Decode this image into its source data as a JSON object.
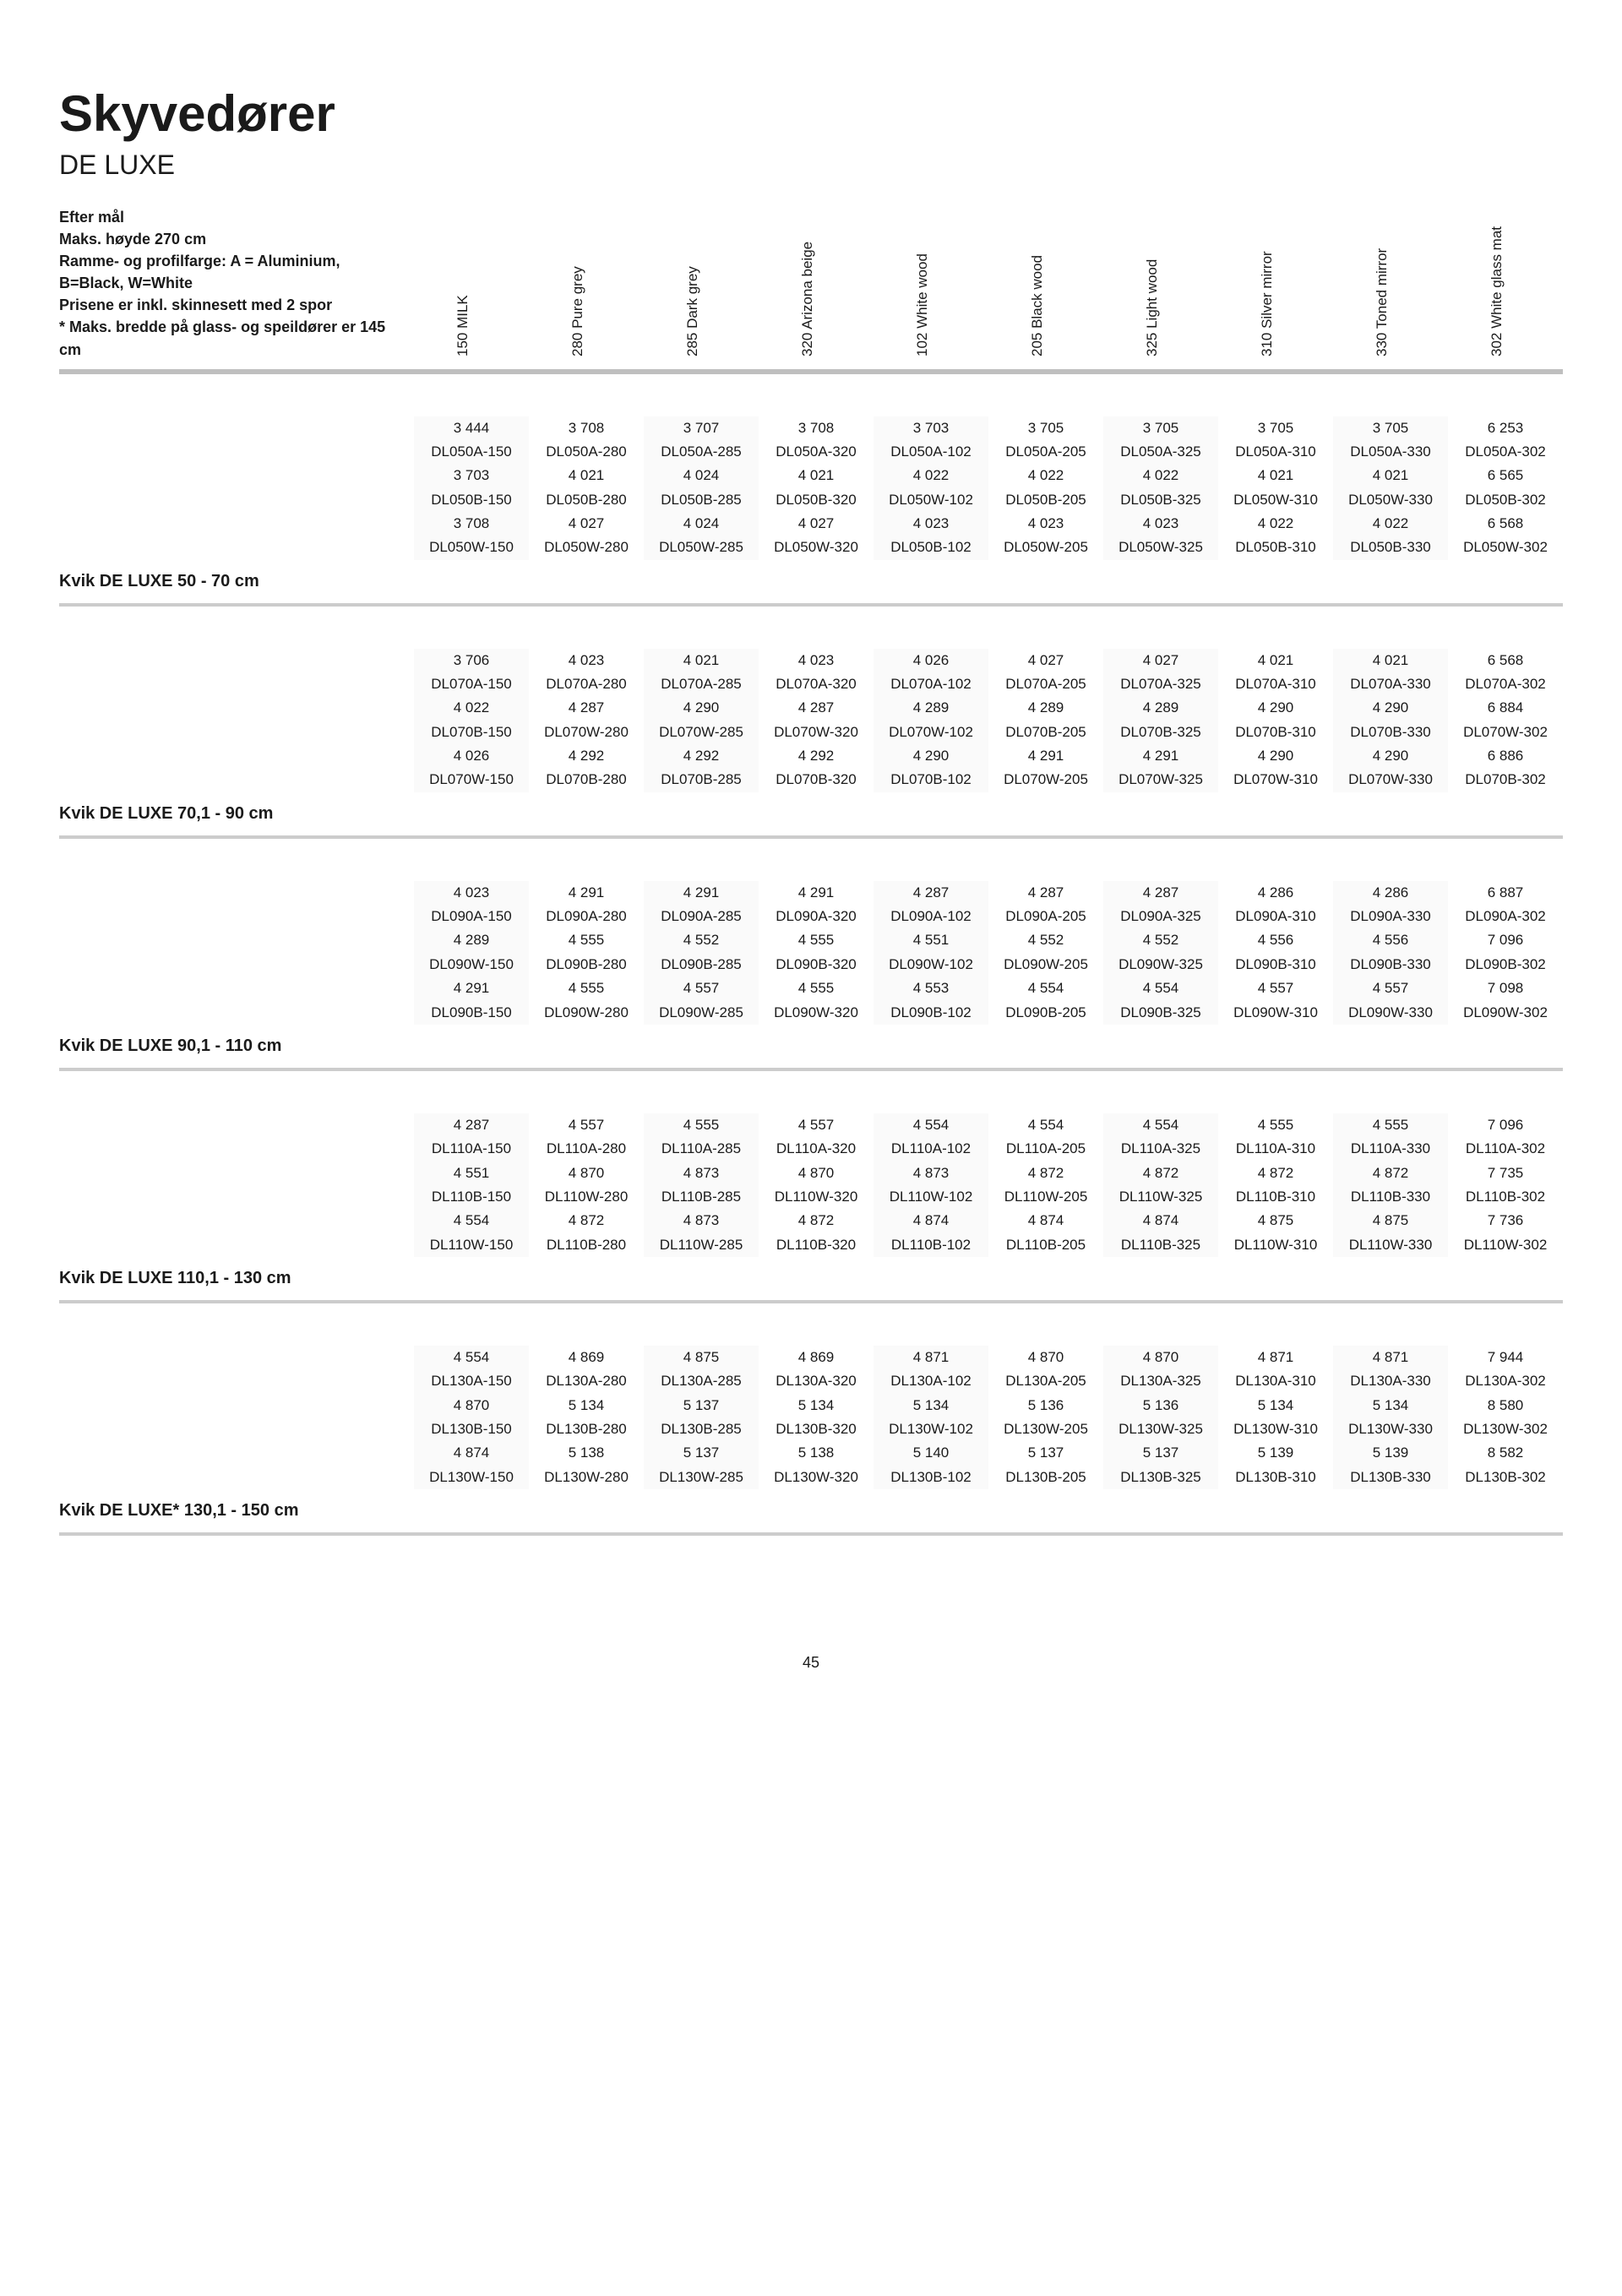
{
  "title": "Skyvedører",
  "subtitle": "DE LUXE",
  "description": "Efter mål\nMaks. høyde 270 cm\nRamme- og profilfarge: A = Aluminium, B=Black, W=White\nPrisene er inkl. skinnesett med 2 spor\n* Maks. bredde på glass- og speildører er 145 cm",
  "columns": [
    "150 MILK",
    "280 Pure grey",
    "285 Dark grey",
    "320 Arizona beige",
    "102 White wood",
    "205 Black wood",
    "325 Light wood",
    "310 Silver mirror",
    "330 Toned mirror",
    "302 White glass mat"
  ],
  "page_number": "45",
  "sections": [
    {
      "label": "Kvik DE LUXE 50 - 70 cm",
      "rows": [
        [
          "3 444",
          "3 708",
          "3 707",
          "3 708",
          "3 703",
          "3 705",
          "3 705",
          "3 705",
          "3 705",
          "6 253"
        ],
        [
          "DL050A-150",
          "DL050A-280",
          "DL050A-285",
          "DL050A-320",
          "DL050A-102",
          "DL050A-205",
          "DL050A-325",
          "DL050A-310",
          "DL050A-330",
          "DL050A-302"
        ],
        [
          "3 703",
          "4 021",
          "4 024",
          "4 021",
          "4 022",
          "4 022",
          "4 022",
          "4 021",
          "4 021",
          "6 565"
        ],
        [
          "DL050B-150",
          "DL050B-280",
          "DL050B-285",
          "DL050B-320",
          "DL050W-102",
          "DL050B-205",
          "DL050B-325",
          "DL050W-310",
          "DL050W-330",
          "DL050B-302"
        ],
        [
          "3 708",
          "4 027",
          "4 024",
          "4 027",
          "4 023",
          "4 023",
          "4 023",
          "4 022",
          "4 022",
          "6 568"
        ],
        [
          "DL050W-150",
          "DL050W-280",
          "DL050W-285",
          "DL050W-320",
          "DL050B-102",
          "DL050W-205",
          "DL050W-325",
          "DL050B-310",
          "DL050B-330",
          "DL050W-302"
        ]
      ]
    },
    {
      "label": "Kvik DE LUXE 70,1 - 90 cm",
      "rows": [
        [
          "3 706",
          "4 023",
          "4 021",
          "4 023",
          "4 026",
          "4 027",
          "4 027",
          "4 021",
          "4 021",
          "6 568"
        ],
        [
          "DL070A-150",
          "DL070A-280",
          "DL070A-285",
          "DL070A-320",
          "DL070A-102",
          "DL070A-205",
          "DL070A-325",
          "DL070A-310",
          "DL070A-330",
          "DL070A-302"
        ],
        [
          "4 022",
          "4 287",
          "4 290",
          "4 287",
          "4 289",
          "4 289",
          "4 289",
          "4 290",
          "4 290",
          "6 884"
        ],
        [
          "DL070B-150",
          "DL070W-280",
          "DL070W-285",
          "DL070W-320",
          "DL070W-102",
          "DL070B-205",
          "DL070B-325",
          "DL070B-310",
          "DL070B-330",
          "DL070W-302"
        ],
        [
          "4 026",
          "4 292",
          "4 292",
          "4 292",
          "4 290",
          "4 291",
          "4 291",
          "4 290",
          "4 290",
          "6 886"
        ],
        [
          "DL070W-150",
          "DL070B-280",
          "DL070B-285",
          "DL070B-320",
          "DL070B-102",
          "DL070W-205",
          "DL070W-325",
          "DL070W-310",
          "DL070W-330",
          "DL070B-302"
        ]
      ]
    },
    {
      "label": "Kvik DE LUXE 90,1 - 110 cm",
      "rows": [
        [
          "4 023",
          "4 291",
          "4 291",
          "4 291",
          "4 287",
          "4 287",
          "4 287",
          "4 286",
          "4 286",
          "6 887"
        ],
        [
          "DL090A-150",
          "DL090A-280",
          "DL090A-285",
          "DL090A-320",
          "DL090A-102",
          "DL090A-205",
          "DL090A-325",
          "DL090A-310",
          "DL090A-330",
          "DL090A-302"
        ],
        [
          "4 289",
          "4 555",
          "4 552",
          "4 555",
          "4 551",
          "4 552",
          "4 552",
          "4 556",
          "4 556",
          "7 096"
        ],
        [
          "DL090W-150",
          "DL090B-280",
          "DL090B-285",
          "DL090B-320",
          "DL090W-102",
          "DL090W-205",
          "DL090W-325",
          "DL090B-310",
          "DL090B-330",
          "DL090B-302"
        ],
        [
          "4 291",
          "4 555",
          "4 557",
          "4 555",
          "4 553",
          "4 554",
          "4 554",
          "4 557",
          "4 557",
          "7 098"
        ],
        [
          "DL090B-150",
          "DL090W-280",
          "DL090W-285",
          "DL090W-320",
          "DL090B-102",
          "DL090B-205",
          "DL090B-325",
          "DL090W-310",
          "DL090W-330",
          "DL090W-302"
        ]
      ]
    },
    {
      "label": "Kvik DE LUXE 110,1 - 130 cm",
      "rows": [
        [
          "4 287",
          "4 557",
          "4 555",
          "4 557",
          "4 554",
          "4 554",
          "4 554",
          "4 555",
          "4 555",
          "7 096"
        ],
        [
          "DL110A-150",
          "DL110A-280",
          "DL110A-285",
          "DL110A-320",
          "DL110A-102",
          "DL110A-205",
          "DL110A-325",
          "DL110A-310",
          "DL110A-330",
          "DL110A-302"
        ],
        [
          "4 551",
          "4 870",
          "4 873",
          "4 870",
          "4 873",
          "4 872",
          "4 872",
          "4 872",
          "4 872",
          "7 735"
        ],
        [
          "DL110B-150",
          "DL110W-280",
          "DL110B-285",
          "DL110W-320",
          "DL110W-102",
          "DL110W-205",
          "DL110W-325",
          "DL110B-310",
          "DL110B-330",
          "DL110B-302"
        ],
        [
          "4 554",
          "4 872",
          "4 873",
          "4 872",
          "4 874",
          "4 874",
          "4 874",
          "4 875",
          "4 875",
          "7 736"
        ],
        [
          "DL110W-150",
          "DL110B-280",
          "DL110W-285",
          "DL110B-320",
          "DL110B-102",
          "DL110B-205",
          "DL110B-325",
          "DL110W-310",
          "DL110W-330",
          "DL110W-302"
        ]
      ]
    },
    {
      "label": "Kvik DE LUXE* 130,1 - 150 cm",
      "rows": [
        [
          "4 554",
          "4 869",
          "4 875",
          "4 869",
          "4 871",
          "4 870",
          "4 870",
          "4 871",
          "4 871",
          "7 944"
        ],
        [
          "DL130A-150",
          "DL130A-280",
          "DL130A-285",
          "DL130A-320",
          "DL130A-102",
          "DL130A-205",
          "DL130A-325",
          "DL130A-310",
          "DL130A-330",
          "DL130A-302"
        ],
        [
          "4 870",
          "5 134",
          "5 137",
          "5 134",
          "5 134",
          "5 136",
          "5 136",
          "5 134",
          "5 134",
          "8 580"
        ],
        [
          "DL130B-150",
          "DL130B-280",
          "DL130B-285",
          "DL130B-320",
          "DL130W-102",
          "DL130W-205",
          "DL130W-325",
          "DL130W-310",
          "DL130W-330",
          "DL130W-302"
        ],
        [
          "4 874",
          "5 138",
          "5 137",
          "5 138",
          "5 140",
          "5 137",
          "5 137",
          "5 139",
          "5 139",
          "8 582"
        ],
        [
          "DL130W-150",
          "DL130W-280",
          "DL130W-285",
          "DL130W-320",
          "DL130B-102",
          "DL130B-205",
          "DL130B-325",
          "DL130B-310",
          "DL130B-330",
          "DL130B-302"
        ]
      ]
    }
  ]
}
